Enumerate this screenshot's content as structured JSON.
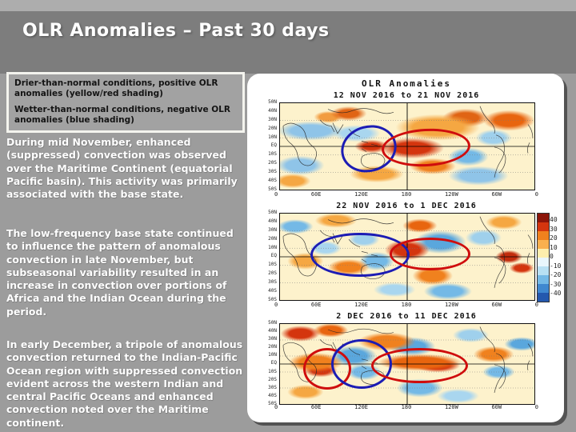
{
  "slide": {
    "title": "OLR Anomalies – Past 30 days"
  },
  "legend_box": {
    "line1": "Drier-than-normal conditions, positive OLR anomalies (yellow/red shading)",
    "line2": "Wetter-than-normal conditions, negative OLR anomalies (blue shading)"
  },
  "paragraphs": {
    "p1": "During mid November, enhanced (suppressed) convection was observed over the Maritime Continent (equatorial Pacific basin). This activity was primarily associated with the base state.",
    "p2": "The low-frequency base state continued to influence the pattern of anomalous convection in late November, but subseasonal variability resulted in an increase in convection over portions of Africa and the Indian Ocean during the period.",
    "p3": "In early December, a tripole of anomalous convection returned to the Indian-Pacific Ocean region with suppressed convection evident across the western Indian and central Pacific Oceans and enhanced convection noted over the Maritime continent."
  },
  "figure": {
    "title": "OLR Anomalies",
    "panels": [
      {
        "subtitle": "12 NOV 2016 to 21 NOV 2016"
      },
      {
        "subtitle": "22 NOV 2016 to 1 DEC 2016"
      },
      {
        "subtitle": "2 DEC 2016 to 11 DEC 2016"
      }
    ],
    "lat_labels": [
      "50N",
      "40N",
      "30N",
      "20N",
      "10N",
      "EQ",
      "10S",
      "20S",
      "30S",
      "40S",
      "50S"
    ],
    "lon_labels": [
      "0",
      "60E",
      "120E",
      "180",
      "120W",
      "60W",
      "0"
    ],
    "colorbar": {
      "labels": [
        "40",
        "30",
        "20",
        "10",
        "0",
        "-10",
        "-20",
        "-30",
        "-40"
      ],
      "colors": [
        "#8c1509",
        "#d4350e",
        "#f0811e",
        "#f9b04e",
        "#fdeead",
        "#e9f6fc",
        "#b8e0f3",
        "#74b9e6",
        "#3f88d0",
        "#2458ae"
      ]
    },
    "annotation_colors": {
      "enhanced": "#1c1cb4",
      "suppressed": "#cf0d0d"
    }
  }
}
